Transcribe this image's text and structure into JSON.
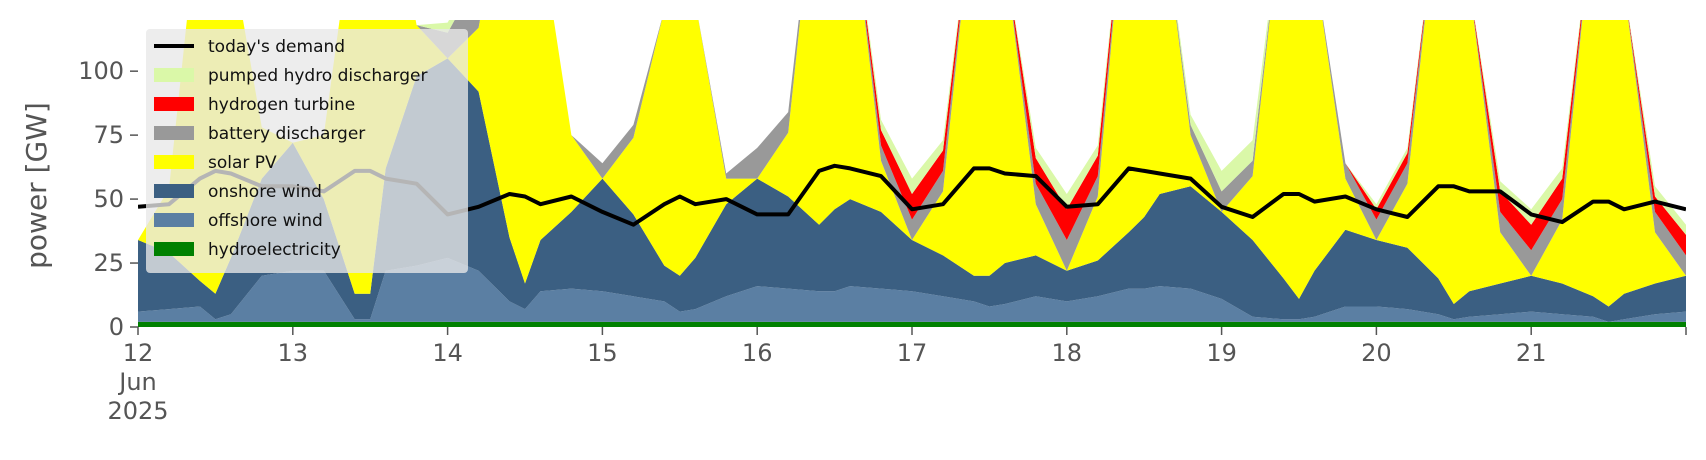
{
  "chart_data": {
    "type": "area",
    "title": "",
    "xlabel": "",
    "ylabel": "power [GW]",
    "ylim": [
      0,
      120
    ],
    "yticks": [
      0,
      25,
      50,
      75,
      100
    ],
    "xlim": [
      "2025-06-12",
      "2025-06-22"
    ],
    "xtick_labels": [
      "12\nJun\n2025",
      "13",
      "14",
      "15",
      "16",
      "17",
      "18",
      "19",
      "20",
      "21",
      ""
    ],
    "grid": false,
    "legend_position": "top-left",
    "x": [
      12.0,
      12.2,
      12.4,
      12.5,
      12.6,
      12.8,
      13.0,
      13.2,
      13.4,
      13.5,
      13.6,
      13.8,
      14.0,
      14.2,
      14.4,
      14.5,
      14.6,
      14.8,
      15.0,
      15.2,
      15.4,
      15.5,
      15.6,
      15.8,
      16.0,
      16.2,
      16.4,
      16.5,
      16.6,
      16.8,
      17.0,
      17.2,
      17.4,
      17.5,
      17.6,
      17.8,
      18.0,
      18.2,
      18.4,
      18.5,
      18.6,
      18.8,
      19.0,
      19.2,
      19.4,
      19.5,
      19.6,
      19.8,
      20.0,
      20.2,
      20.4,
      20.5,
      20.6,
      20.8,
      21.0,
      21.2,
      21.4,
      21.5,
      21.6,
      21.8,
      22.0
    ],
    "series": [
      {
        "name": "hydroelectricity",
        "color": "#008000",
        "values": [
          2,
          2,
          2,
          2,
          2,
          2,
          2,
          2,
          2,
          2,
          2,
          2,
          2,
          2,
          2,
          2,
          2,
          2,
          2,
          2,
          2,
          2,
          2,
          2,
          2,
          2,
          2,
          2,
          2,
          2,
          2,
          2,
          2,
          2,
          2,
          2,
          2,
          2,
          2,
          2,
          2,
          2,
          2,
          2,
          2,
          2,
          2,
          2,
          2,
          2,
          2,
          2,
          2,
          2,
          2,
          2,
          2,
          2,
          2,
          2,
          2
        ]
      },
      {
        "name": "offshore wind",
        "color": "#5b7fa3",
        "values": [
          4,
          5,
          6,
          1,
          3,
          18,
          20,
          20,
          1,
          1,
          20,
          22,
          25,
          20,
          8,
          5,
          12,
          13,
          12,
          10,
          8,
          4,
          5,
          10,
          14,
          13,
          12,
          12,
          14,
          13,
          12,
          10,
          8,
          6,
          7,
          10,
          8,
          10,
          13,
          13,
          14,
          13,
          9,
          2,
          1,
          1,
          2,
          6,
          6,
          5,
          3,
          1,
          2,
          3,
          4,
          3,
          2,
          0,
          1,
          3,
          4
        ]
      },
      {
        "name": "onshore wind",
        "color": "#3b5f82",
        "values": [
          28,
          22,
          10,
          10,
          22,
          38,
          50,
          28,
          10,
          10,
          40,
          74,
          78,
          70,
          25,
          10,
          20,
          30,
          44,
          32,
          14,
          14,
          20,
          36,
          42,
          36,
          26,
          32,
          34,
          30,
          20,
          16,
          10,
          12,
          16,
          16,
          12,
          14,
          22,
          28,
          36,
          40,
          34,
          30,
          16,
          8,
          18,
          30,
          26,
          24,
          14,
          6,
          10,
          12,
          14,
          12,
          8,
          6,
          10,
          12,
          14
        ]
      },
      {
        "name": "solar PV",
        "color": "#ffff00",
        "values": [
          0,
          25,
          150,
          150,
          120,
          20,
          0,
          25,
          150,
          150,
          120,
          20,
          0,
          25,
          150,
          150,
          120,
          30,
          0,
          30,
          100,
          114,
          100,
          10,
          0,
          25,
          150,
          150,
          120,
          20,
          0,
          25,
          150,
          150,
          120,
          20,
          0,
          25,
          150,
          150,
          120,
          20,
          0,
          25,
          150,
          150,
          120,
          20,
          0,
          25,
          150,
          150,
          120,
          20,
          0,
          25,
          150,
          150,
          120,
          20,
          0
        ]
      },
      {
        "name": "battery discharger",
        "color": "#999999",
        "values": [
          0,
          0,
          0,
          0,
          0,
          0,
          0,
          0,
          0,
          0,
          0,
          0,
          10,
          20,
          0,
          0,
          0,
          0,
          6,
          5,
          0,
          0,
          0,
          2,
          12,
          8,
          0,
          0,
          0,
          6,
          8,
          8,
          0,
          0,
          0,
          8,
          12,
          8,
          0,
          0,
          0,
          4,
          8,
          6,
          0,
          0,
          0,
          6,
          8,
          8,
          0,
          0,
          0,
          8,
          10,
          8,
          0,
          0,
          0,
          8,
          8
        ]
      },
      {
        "name": "hydrogen turbine",
        "color": "#ff0000",
        "values": [
          0,
          0,
          0,
          0,
          0,
          0,
          0,
          0,
          0,
          0,
          0,
          0,
          0,
          0,
          0,
          0,
          0,
          0,
          0,
          0,
          0,
          0,
          0,
          0,
          0,
          0,
          0,
          0,
          0,
          6,
          10,
          8,
          0,
          0,
          0,
          10,
          12,
          8,
          0,
          0,
          0,
          0,
          0,
          0,
          0,
          0,
          0,
          0,
          4,
          4,
          0,
          0,
          0,
          8,
          10,
          8,
          0,
          0,
          0,
          6,
          8
        ]
      },
      {
        "name": "pumped hydro discharger",
        "color": "#daf8a8",
        "values": [
          0,
          0,
          0,
          0,
          0,
          0,
          0,
          0,
          0,
          0,
          0,
          0,
          4,
          4,
          0,
          0,
          0,
          0,
          0,
          0,
          0,
          0,
          0,
          0,
          0,
          0,
          0,
          0,
          0,
          4,
          6,
          4,
          0,
          0,
          0,
          4,
          6,
          4,
          0,
          0,
          0,
          4,
          8,
          8,
          0,
          0,
          0,
          0,
          2,
          2,
          0,
          0,
          0,
          4,
          6,
          4,
          0,
          0,
          0,
          4,
          4
        ]
      },
      {
        "name": "today's demand",
        "color": "#000000",
        "type": "line",
        "values": [
          47,
          48,
          58,
          61,
          60,
          55,
          55,
          53,
          61,
          61,
          58,
          56,
          44,
          47,
          52,
          51,
          48,
          51,
          45,
          40,
          48,
          51,
          48,
          50,
          44,
          44,
          61,
          63,
          62,
          59,
          46,
          48,
          62,
          62,
          60,
          59,
          47,
          48,
          62,
          61,
          60,
          58,
          47,
          43,
          52,
          52,
          49,
          51,
          46,
          43,
          55,
          55,
          53,
          53,
          44,
          41,
          49,
          49,
          46,
          49,
          46
        ]
      }
    ]
  }
}
